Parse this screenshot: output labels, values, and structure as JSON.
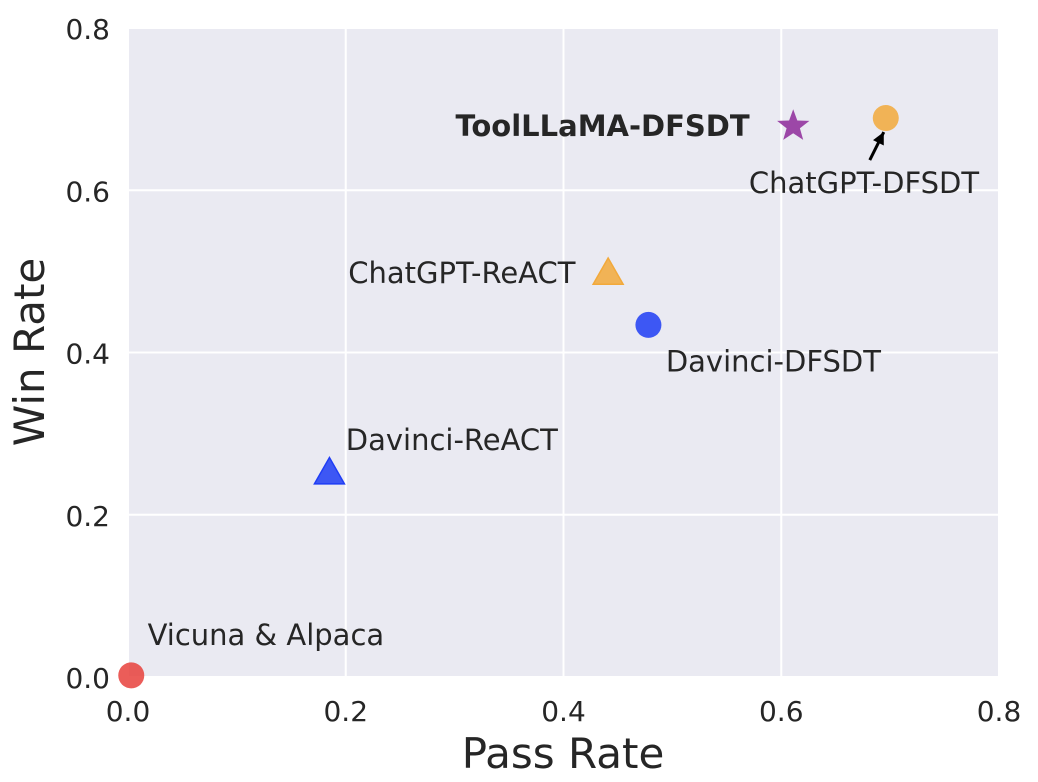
{
  "chart_data": {
    "type": "scatter",
    "xlabel": "Pass Rate",
    "ylabel": "Win Rate",
    "xlim": [
      0.0,
      0.8
    ],
    "ylim": [
      0.0,
      0.8
    ],
    "xticks": [
      "0.0",
      "0.2",
      "0.4",
      "0.6",
      "0.8"
    ],
    "yticks": [
      "0.0",
      "0.2",
      "0.4",
      "0.6",
      "0.8"
    ],
    "grid": true,
    "points": [
      {
        "label": "Vicuna & Alpaca",
        "x": 0.003,
        "y": 0.002,
        "marker": "circle",
        "color": "#e8413c",
        "bold": false,
        "label_dx": 0.015,
        "label_dy": 0.05,
        "anchor": "start"
      },
      {
        "label": "Davinci-ReACT",
        "x": 0.185,
        "y": 0.252,
        "marker": "triangle",
        "color": "#1f3df5",
        "bold": false,
        "label_dx": 0.015,
        "label_dy": 0.04,
        "anchor": "start"
      },
      {
        "label": "ChatGPT-ReACT",
        "x": 0.441,
        "y": 0.498,
        "marker": "triangle",
        "color": "#f2a93b",
        "bold": false,
        "label_dx": -0.03,
        "label_dy": 0.0,
        "anchor": "end"
      },
      {
        "label": "Davinci-DFSDT",
        "x": 0.478,
        "y": 0.434,
        "marker": "circle",
        "color": "#1f3df5",
        "bold": false,
        "label_dx": 0.016,
        "label_dy": -0.045,
        "anchor": "start"
      },
      {
        "label": "ToolLLaMA-DFSDT",
        "x": 0.611,
        "y": 0.679,
        "marker": "star",
        "color": "#8e2a9a",
        "bold": true,
        "label_dx": -0.04,
        "label_dy": 0.0,
        "anchor": "end"
      },
      {
        "label": "ChatGPT-DFSDT",
        "x": 0.696,
        "y": 0.689,
        "marker": "circle",
        "color": "#f2a93b",
        "bold": false,
        "label_dx": -0.02,
        "label_dy": -0.08,
        "anchor": "middle",
        "arrow": true
      }
    ]
  }
}
